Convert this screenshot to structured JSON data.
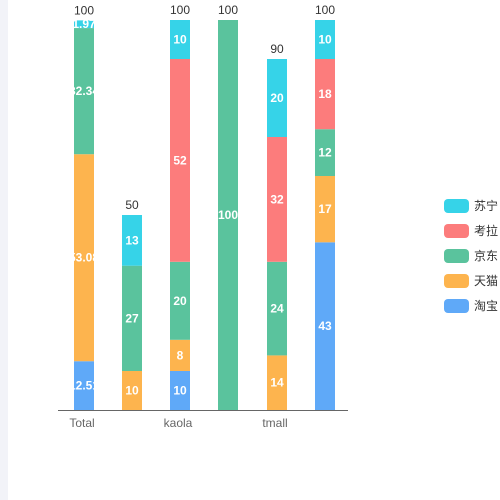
{
  "chart_data": {
    "type": "bar",
    "stacked": true,
    "categories": [
      "Total",
      "",
      "kaola",
      "",
      "tmall",
      ""
    ],
    "ylim": [
      0,
      100
    ],
    "legend_position": "right",
    "series": [
      {
        "name": "淘宝",
        "color": "#5fa9f8",
        "values": [
          12.51,
          0,
          10,
          0,
          0,
          43
        ],
        "labels": [
          "12.51",
          "",
          "10",
          "",
          "",
          "43"
        ]
      },
      {
        "name": "天猫",
        "color": "#fdb44e",
        "values": [
          53.08,
          10,
          8,
          0,
          14,
          17
        ],
        "labels": [
          "53.08",
          "10",
          "8",
          "",
          "14",
          "17"
        ]
      },
      {
        "name": "京东",
        "color": "#5ac39d",
        "values": [
          32.34,
          27,
          20,
          100,
          24,
          12
        ],
        "labels": [
          "32.34",
          "27",
          "20",
          "100",
          "24",
          "12"
        ]
      },
      {
        "name": "考拉",
        "color": "#fc7c7c",
        "values": [
          0,
          0,
          52,
          0,
          32,
          18
        ],
        "labels": [
          "",
          "",
          "52",
          "",
          "32",
          "18"
        ]
      },
      {
        "name": "苏宁",
        "color": "#36d3e8",
        "values": [
          1.97,
          13,
          10,
          0,
          20,
          10
        ],
        "labels": [
          "1.97",
          "13",
          "10",
          "",
          "20",
          "10"
        ]
      }
    ],
    "totals": [
      "100",
      "50",
      "100",
      "100",
      "90",
      "100"
    ]
  },
  "legend_order": [
    4,
    3,
    2,
    1,
    0
  ]
}
